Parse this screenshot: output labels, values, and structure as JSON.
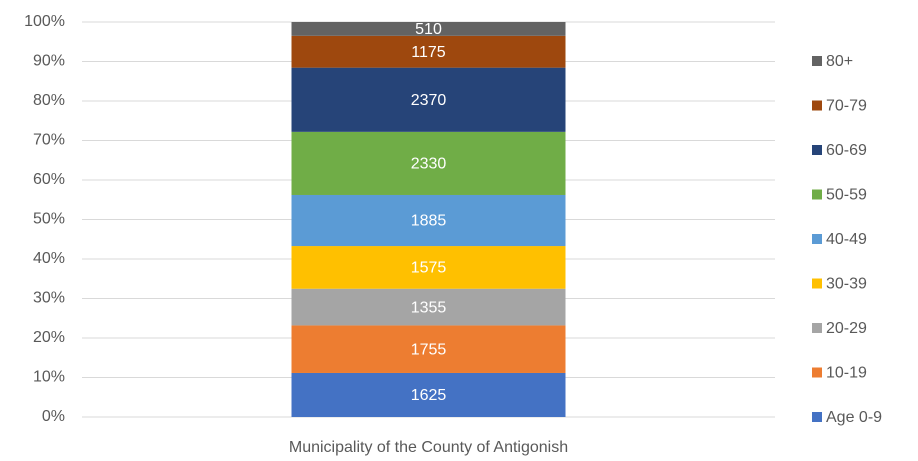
{
  "chart_data": {
    "type": "bar",
    "stacking": "percent",
    "categories": [
      "Municipality of the County of Antigonish"
    ],
    "series": [
      {
        "name": "Age 0-9",
        "color": "#4472c4",
        "values": [
          1625
        ]
      },
      {
        "name": "10-19",
        "color": "#ed7d31",
        "values": [
          1755
        ]
      },
      {
        "name": "20-29",
        "color": "#a5a5a5",
        "values": [
          1355
        ]
      },
      {
        "name": "30-39",
        "color": "#ffc000",
        "values": [
          1575
        ]
      },
      {
        "name": "40-49",
        "color": "#5b9bd5",
        "values": [
          1885
        ]
      },
      {
        "name": "50-59",
        "color": "#70ad47",
        "values": [
          2330
        ]
      },
      {
        "name": "60-69",
        "color": "#264478",
        "values": [
          2370
        ]
      },
      {
        "name": "70-79",
        "color": "#9e480e",
        "values": [
          1175
        ]
      },
      {
        "name": "80+",
        "color": "#636363",
        "values": [
          510
        ]
      }
    ],
    "ylim": [
      0,
      100
    ],
    "yticks": [
      {
        "value": 0,
        "label": "0%"
      },
      {
        "value": 10,
        "label": "10%"
      },
      {
        "value": 20,
        "label": "20%"
      },
      {
        "value": 30,
        "label": "30%"
      },
      {
        "value": 40,
        "label": "40%"
      },
      {
        "value": 50,
        "label": "50%"
      },
      {
        "value": 60,
        "label": "60%"
      },
      {
        "value": 70,
        "label": "70%"
      },
      {
        "value": 80,
        "label": "80%"
      },
      {
        "value": 90,
        "label": "90%"
      },
      {
        "value": 100,
        "label": "100%"
      }
    ],
    "grid": true,
    "legend": "right"
  }
}
